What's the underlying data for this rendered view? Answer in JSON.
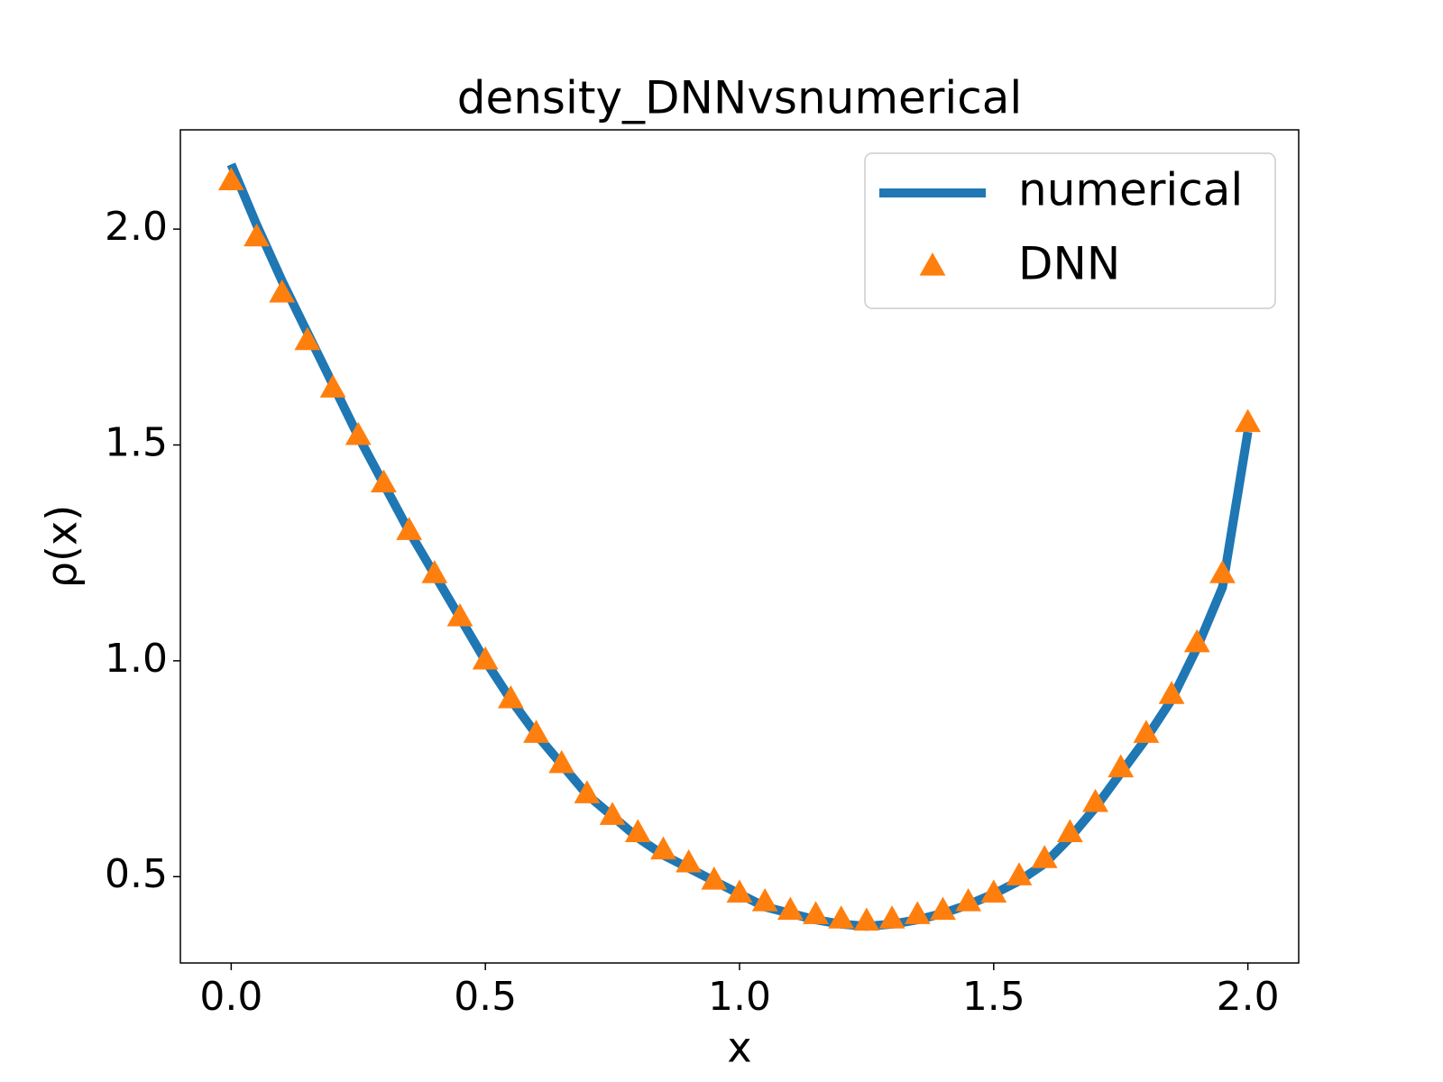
{
  "chart_data": {
    "type": "line",
    "title": "density_DNNvsnumerical",
    "x_label": "x",
    "y_label": "ρ(x)",
    "x": [
      0,
      0.05,
      0.1,
      0.15,
      0.2,
      0.25,
      0.3,
      0.35,
      0.4,
      0.45,
      0.5,
      0.55,
      0.6,
      0.65,
      0.7,
      0.75,
      0.8,
      0.85,
      0.9,
      0.95,
      1.0,
      1.05,
      1.1,
      1.15,
      1.2,
      1.25,
      1.3,
      1.35,
      1.4,
      1.45,
      1.5,
      1.55,
      1.6,
      1.65,
      1.7,
      1.75,
      1.8,
      1.85,
      1.9,
      1.95,
      2.0
    ],
    "series": [
      {
        "name": "numerical",
        "color": "#1f77b4",
        "marker": "none",
        "values": [
          2.15,
          2.01,
          1.88,
          1.76,
          1.64,
          1.52,
          1.41,
          1.3,
          1.2,
          1.1,
          1.0,
          0.91,
          0.83,
          0.76,
          0.69,
          0.64,
          0.59,
          0.55,
          0.52,
          0.49,
          0.46,
          0.43,
          0.415,
          0.4,
          0.39,
          0.385,
          0.39,
          0.4,
          0.415,
          0.435,
          0.46,
          0.49,
          0.53,
          0.59,
          0.66,
          0.74,
          0.82,
          0.91,
          1.03,
          1.17,
          1.53
        ]
      },
      {
        "name": "DNN",
        "color": "#ff7f0e",
        "marker": "triangle",
        "values": [
          2.11,
          1.98,
          1.85,
          1.74,
          1.63,
          1.52,
          1.41,
          1.3,
          1.2,
          1.1,
          1.0,
          0.91,
          0.83,
          0.76,
          0.69,
          0.64,
          0.6,
          0.56,
          0.53,
          0.49,
          0.46,
          0.44,
          0.42,
          0.41,
          0.4,
          0.395,
          0.4,
          0.41,
          0.42,
          0.44,
          0.46,
          0.5,
          0.54,
          0.6,
          0.67,
          0.75,
          0.83,
          0.92,
          1.04,
          1.2,
          1.55
        ]
      }
    ],
    "xlim": [
      -0.1,
      2.1
    ],
    "xticks": [
      {
        "value": 0,
        "label": "0.0"
      },
      0.5,
      {
        "value": 1,
        "label": "1.0"
      },
      1.5,
      {
        "value": 2,
        "label": "2.0"
      }
    ],
    "ylim": [
      0.3,
      2.23
    ],
    "yticks": [
      0.5,
      {
        "value": 1,
        "label": "1.0"
      },
      1.5,
      {
        "value": 2,
        "label": "2.0"
      }
    ],
    "legend": "upper right"
  }
}
